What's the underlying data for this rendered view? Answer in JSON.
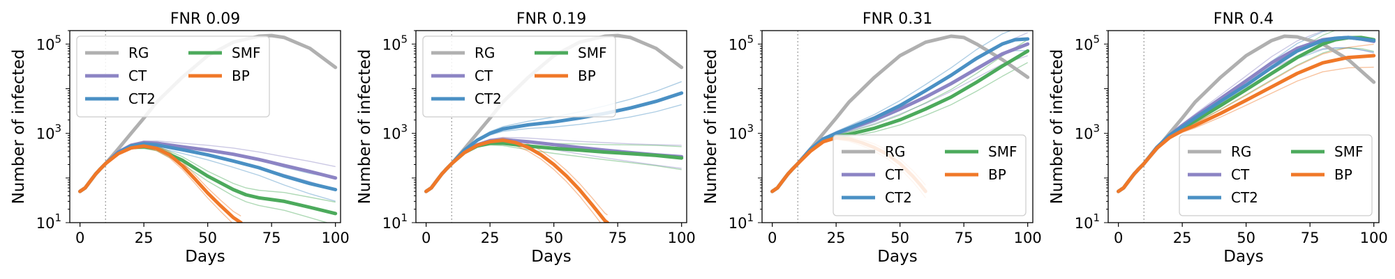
{
  "chart_data": [
    {
      "type": "line",
      "title": "FNR 0.09",
      "xlabel": "Days",
      "ylabel": "Number of infected",
      "xlim": [
        -4,
        102
      ],
      "yscale": "log",
      "ylim": [
        10,
        200000
      ],
      "xticks": [
        0,
        25,
        50,
        75,
        100
      ],
      "xtick_labels": [
        "0",
        "25",
        "50",
        "75",
        "100"
      ],
      "yticks": [
        10,
        1000,
        100000
      ],
      "ytick_labels": [
        {
          "base": "10",
          "exp": "1"
        },
        {
          "base": "10",
          "exp": "3"
        },
        {
          "base": "10",
          "exp": "5"
        }
      ],
      "vline_x": 10,
      "legend": {
        "position": "upper-left",
        "columns": 2,
        "order": [
          "RG",
          "CT",
          "CT2",
          "SMF",
          "BP"
        ]
      },
      "series": [
        {
          "name": "RG",
          "color": "#b0b0b0",
          "x": [
            0,
            2,
            4,
            6,
            8,
            10,
            15,
            20,
            25,
            30,
            40,
            50,
            60,
            70,
            75,
            80,
            90,
            100
          ],
          "y": [
            50,
            60,
            85,
            120,
            160,
            210,
            450,
            1000,
            2200,
            5000,
            18000,
            55000,
            110000,
            150000,
            155000,
            140000,
            80000,
            30000
          ]
        },
        {
          "name": "CT",
          "color": "#8c84c4",
          "x": [
            0,
            2,
            4,
            6,
            8,
            10,
            15,
            20,
            25,
            30,
            40,
            50,
            60,
            70,
            80,
            90,
            100
          ],
          "y": [
            50,
            60,
            85,
            120,
            160,
            210,
            380,
            540,
            620,
            600,
            500,
            420,
            340,
            260,
            190,
            140,
            100
          ]
        },
        {
          "name": "CT2",
          "color": "#4a90c4",
          "x": [
            0,
            2,
            4,
            6,
            8,
            10,
            15,
            20,
            25,
            30,
            40,
            50,
            60,
            70,
            80,
            90,
            100
          ],
          "y": [
            50,
            60,
            85,
            120,
            160,
            210,
            370,
            520,
            580,
            550,
            430,
            330,
            240,
            170,
            110,
            75,
            55
          ]
        },
        {
          "name": "SMF",
          "color": "#4caa5c",
          "x": [
            0,
            2,
            4,
            6,
            8,
            10,
            15,
            20,
            25,
            30,
            40,
            50,
            60,
            65,
            70,
            80,
            90,
            100
          ],
          "y": [
            50,
            60,
            85,
            120,
            160,
            210,
            360,
            480,
            500,
            460,
            250,
            110,
            55,
            42,
            36,
            30,
            22,
            16
          ]
        },
        {
          "name": "BP",
          "color": "#f07828",
          "x": [
            0,
            2,
            4,
            6,
            8,
            10,
            15,
            20,
            25,
            30,
            35,
            40,
            45,
            50,
            55,
            60,
            63
          ],
          "y": [
            50,
            60,
            85,
            120,
            160,
            210,
            350,
            470,
            520,
            460,
            330,
            190,
            95,
            46,
            24,
            13,
            10
          ]
        }
      ]
    },
    {
      "type": "line",
      "title": "FNR 0.19",
      "xlabel": "Days",
      "ylabel": "Number of infected",
      "xlim": [
        -4,
        102
      ],
      "yscale": "log",
      "ylim": [
        10,
        200000
      ],
      "xticks": [
        0,
        25,
        50,
        75,
        100
      ],
      "xtick_labels": [
        "0",
        "25",
        "50",
        "75",
        "100"
      ],
      "yticks": [
        10,
        1000,
        100000
      ],
      "ytick_labels": [
        {
          "base": "10",
          "exp": "1"
        },
        {
          "base": "10",
          "exp": "3"
        },
        {
          "base": "10",
          "exp": "5"
        }
      ],
      "vline_x": 10,
      "legend": {
        "position": "upper-left",
        "columns": 2,
        "order": [
          "RG",
          "CT",
          "CT2",
          "SMF",
          "BP"
        ]
      },
      "series": [
        {
          "name": "RG",
          "color": "#b0b0b0",
          "x": [
            0,
            2,
            4,
            6,
            8,
            10,
            15,
            20,
            25,
            30,
            40,
            50,
            60,
            70,
            75,
            80,
            90,
            100
          ],
          "y": [
            50,
            60,
            85,
            120,
            160,
            210,
            450,
            1000,
            2200,
            5000,
            18000,
            55000,
            110000,
            150000,
            155000,
            140000,
            80000,
            30000
          ]
        },
        {
          "name": "CT",
          "color": "#8c84c4",
          "x": [
            0,
            2,
            4,
            6,
            8,
            10,
            15,
            20,
            25,
            30,
            40,
            50,
            60,
            70,
            80,
            90,
            100
          ],
          "y": [
            50,
            60,
            85,
            120,
            160,
            210,
            380,
            550,
            680,
            720,
            650,
            560,
            480,
            420,
            370,
            330,
            300
          ]
        },
        {
          "name": "CT2",
          "color": "#4a90c4",
          "x": [
            0,
            2,
            4,
            6,
            8,
            10,
            15,
            20,
            25,
            30,
            40,
            50,
            60,
            70,
            80,
            90,
            100
          ],
          "y": [
            50,
            60,
            85,
            120,
            160,
            210,
            420,
            700,
            1000,
            1250,
            1550,
            1800,
            2200,
            2800,
            3700,
            5200,
            8000
          ]
        },
        {
          "name": "SMF",
          "color": "#4caa5c",
          "x": [
            0,
            2,
            4,
            6,
            8,
            10,
            15,
            20,
            25,
            30,
            40,
            50,
            60,
            70,
            80,
            90,
            100
          ],
          "y": [
            50,
            60,
            85,
            120,
            160,
            210,
            370,
            520,
            600,
            600,
            520,
            460,
            420,
            380,
            350,
            320,
            280
          ]
        },
        {
          "name": "BP",
          "color": "#f07828",
          "x": [
            0,
            2,
            4,
            6,
            8,
            10,
            15,
            20,
            25,
            30,
            35,
            40,
            45,
            50,
            55,
            60,
            65,
            70,
            71
          ],
          "y": [
            50,
            60,
            85,
            120,
            160,
            210,
            370,
            540,
            650,
            700,
            620,
            480,
            330,
            200,
            110,
            55,
            25,
            11,
            10
          ]
        }
      ]
    },
    {
      "type": "line",
      "title": "FNR 0.31",
      "xlabel": "Days",
      "ylabel": "Number of infected",
      "xlim": [
        -4,
        102
      ],
      "yscale": "log",
      "ylim": [
        10,
        200000
      ],
      "xticks": [
        0,
        25,
        50,
        75,
        100
      ],
      "xtick_labels": [
        "0",
        "25",
        "50",
        "75",
        "100"
      ],
      "yticks": [
        10,
        1000,
        100000
      ],
      "ytick_labels": [
        {
          "base": "10",
          "exp": "1"
        },
        {
          "base": "10",
          "exp": "3"
        },
        {
          "base": "10",
          "exp": "5"
        }
      ],
      "vline_x": 10,
      "legend": {
        "position": "lower-right",
        "columns": 2,
        "order": [
          "RG",
          "CT",
          "CT2",
          "SMF",
          "BP"
        ]
      },
      "series": [
        {
          "name": "RG",
          "color": "#b0b0b0",
          "x": [
            0,
            2,
            4,
            6,
            8,
            10,
            15,
            20,
            25,
            30,
            40,
            50,
            60,
            70,
            75,
            80,
            90,
            100
          ],
          "y": [
            50,
            60,
            85,
            120,
            160,
            210,
            450,
            1000,
            2200,
            5000,
            18000,
            55000,
            110000,
            150000,
            140000,
            100000,
            45000,
            18000
          ]
        },
        {
          "name": "CT",
          "color": "#8c84c4",
          "x": [
            0,
            2,
            4,
            6,
            8,
            10,
            15,
            20,
            25,
            30,
            40,
            50,
            60,
            70,
            80,
            90,
            100
          ],
          "y": [
            50,
            60,
            85,
            120,
            160,
            210,
            440,
            750,
            1000,
            1250,
            2000,
            3500,
            6500,
            13000,
            28000,
            60000,
            100000
          ]
        },
        {
          "name": "CT2",
          "color": "#4a90c4",
          "x": [
            0,
            2,
            4,
            6,
            8,
            10,
            15,
            20,
            25,
            30,
            40,
            50,
            60,
            70,
            80,
            90,
            95,
            100
          ],
          "y": [
            50,
            60,
            85,
            120,
            160,
            210,
            440,
            750,
            1000,
            1300,
            2200,
            4200,
            9000,
            20000,
            48000,
            100000,
            125000,
            130000
          ]
        },
        {
          "name": "SMF",
          "color": "#4caa5c",
          "x": [
            0,
            2,
            4,
            6,
            8,
            10,
            15,
            20,
            25,
            30,
            40,
            50,
            60,
            70,
            80,
            90,
            100
          ],
          "y": [
            50,
            60,
            85,
            120,
            160,
            210,
            420,
            680,
            850,
            950,
            1300,
            2000,
            3500,
            6500,
            14000,
            32000,
            70000
          ]
        },
        {
          "name": "BP",
          "color": "#f07828",
          "x": [
            0,
            2,
            4,
            6,
            8,
            10,
            15,
            20,
            25,
            30,
            35,
            40,
            45,
            50,
            55,
            58,
            60
          ],
          "y": [
            50,
            60,
            85,
            120,
            160,
            210,
            400,
            650,
            800,
            750,
            620,
            480,
            340,
            210,
            110,
            70,
            50
          ]
        }
      ]
    },
    {
      "type": "line",
      "title": "FNR 0.4",
      "xlabel": "Days",
      "ylabel": "Number of infected",
      "xlim": [
        -4,
        102
      ],
      "yscale": "log",
      "ylim": [
        10,
        200000
      ],
      "xticks": [
        0,
        25,
        50,
        75,
        100
      ],
      "xtick_labels": [
        "0",
        "25",
        "50",
        "75",
        "100"
      ],
      "yticks": [
        10,
        1000,
        100000
      ],
      "ytick_labels": [
        {
          "base": "10",
          "exp": "1"
        },
        {
          "base": "10",
          "exp": "3"
        },
        {
          "base": "10",
          "exp": "5"
        }
      ],
      "vline_x": 10,
      "legend": {
        "position": "lower-right",
        "columns": 2,
        "order": [
          "RG",
          "CT",
          "CT2",
          "SMF",
          "BP"
        ]
      },
      "series": [
        {
          "name": "RG",
          "color": "#b0b0b0",
          "x": [
            0,
            2,
            4,
            6,
            8,
            10,
            15,
            20,
            25,
            30,
            40,
            50,
            60,
            65,
            70,
            80,
            90,
            100
          ],
          "y": [
            50,
            60,
            85,
            120,
            160,
            210,
            450,
            1000,
            2200,
            5000,
            18000,
            55000,
            120000,
            150000,
            145000,
            100000,
            45000,
            14000
          ]
        },
        {
          "name": "CT",
          "color": "#8c84c4",
          "x": [
            0,
            2,
            4,
            6,
            8,
            10,
            15,
            20,
            25,
            30,
            40,
            50,
            60,
            70,
            80,
            85,
            90,
            95,
            100
          ],
          "y": [
            50,
            60,
            85,
            120,
            160,
            210,
            480,
            900,
            1500,
            2400,
            6000,
            15000,
            38000,
            80000,
            125000,
            135000,
            140000,
            130000,
            115000
          ]
        },
        {
          "name": "CT2",
          "color": "#4a90c4",
          "x": [
            0,
            2,
            4,
            6,
            8,
            10,
            15,
            20,
            25,
            30,
            40,
            50,
            60,
            70,
            80,
            85,
            90,
            95,
            100
          ],
          "y": [
            50,
            60,
            85,
            120,
            160,
            210,
            480,
            900,
            1400,
            2200,
            5200,
            12000,
            30000,
            70000,
            120000,
            135000,
            140000,
            130000,
            120000
          ]
        },
        {
          "name": "SMF",
          "color": "#4caa5c",
          "x": [
            0,
            2,
            4,
            6,
            8,
            10,
            15,
            20,
            25,
            30,
            40,
            50,
            60,
            70,
            80,
            85,
            90,
            95,
            100
          ],
          "y": [
            50,
            60,
            85,
            120,
            160,
            210,
            470,
            850,
            1300,
            1900,
            4200,
            9500,
            22000,
            50000,
            100000,
            125000,
            138000,
            140000,
            125000
          ]
        },
        {
          "name": "BP",
          "color": "#f07828",
          "x": [
            0,
            2,
            4,
            6,
            8,
            10,
            15,
            20,
            25,
            30,
            40,
            50,
            60,
            70,
            80,
            90,
            100
          ],
          "y": [
            50,
            60,
            85,
            120,
            160,
            210,
            460,
            800,
            1150,
            1500,
            2800,
            5500,
            11000,
            22000,
            38000,
            50000,
            55000
          ]
        }
      ]
    }
  ]
}
